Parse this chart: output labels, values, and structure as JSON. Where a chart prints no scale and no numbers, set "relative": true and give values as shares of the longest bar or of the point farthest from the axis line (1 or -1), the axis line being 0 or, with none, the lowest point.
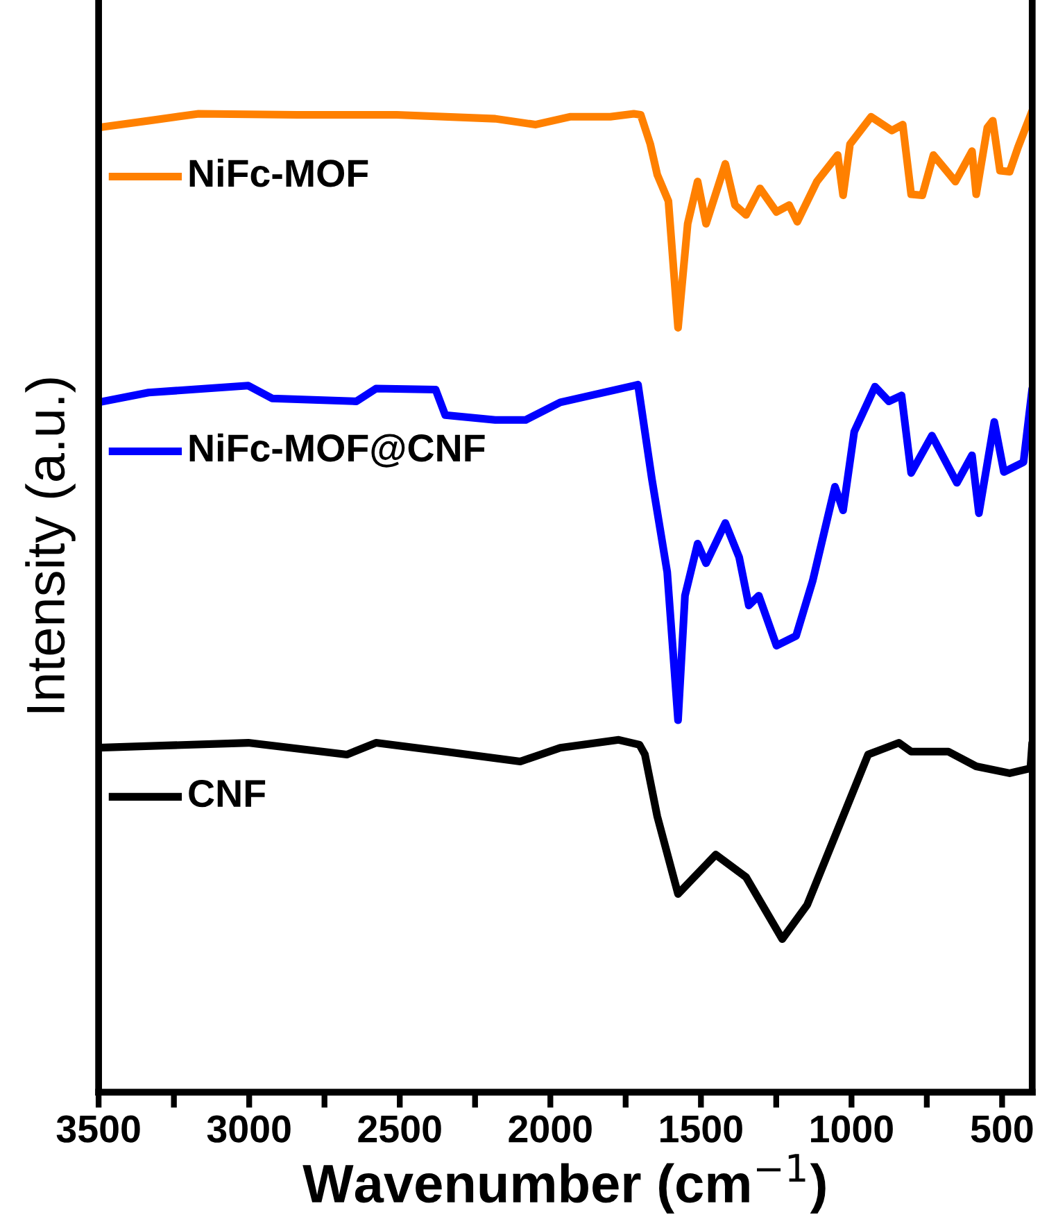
{
  "chart_data": {
    "type": "line",
    "relative": true,
    "xlabel": "Wavenumber (cm$^{−1}$)",
    "ylabel": "Intensity (a.u.)",
    "xlim": [
      3500,
      400
    ],
    "xticks": [
      3500,
      {
        "value": 3250,
        "label": null
      },
      3000,
      {
        "value": 2750,
        "label": null
      },
      2500,
      {
        "value": 2250,
        "label": null
      },
      2000,
      {
        "value": 1750,
        "label": null
      },
      1500,
      {
        "value": 1250,
        "label": null
      },
      1000,
      {
        "value": 750,
        "label": null
      },
      500
    ],
    "tick_labels": "x",
    "grid": false,
    "legend": "top left",
    "marker": "none",
    "line_style": "solid",
    "series": [
      {
        "name": "NiFc-MOF",
        "color": "#ff8000",
        "x": [
          3500,
          3334,
          3168,
          2842,
          2510,
          2183,
          2050,
          1935,
          1801,
          1723,
          1700,
          1668,
          1645,
          1608,
          1576,
          1544,
          1511,
          1483,
          1419,
          1387,
          1350,
          1304,
          1249,
          1207,
          1180,
          1115,
          1046,
          1028,
          1005,
          935,
          866,
          830,
          802,
          765,
          728,
          655,
          600,
          586,
          549,
          531,
          507,
          475,
          447,
          400
        ],
        "values": [
          0.983,
          0.99,
          0.997,
          0.996,
          0.996,
          0.992,
          0.986,
          0.994,
          0.994,
          0.997,
          0.996,
          0.966,
          0.935,
          0.908,
          0.779,
          0.885,
          0.928,
          0.885,
          0.946,
          0.904,
          0.894,
          0.921,
          0.897,
          0.904,
          0.887,
          0.928,
          0.955,
          0.914,
          0.966,
          0.994,
          0.98,
          0.986,
          0.915,
          0.914,
          0.955,
          0.928,
          0.959,
          0.915,
          0.983,
          0.99,
          0.939,
          0.938,
          0.963,
          1.0
        ]
      },
      {
        "name": "NiFc-MOF@CNF",
        "color": "#0000ff",
        "x": [
          3500,
          3334,
          3003,
          2924,
          2644,
          2579,
          2381,
          2349,
          2183,
          2082,
          1967,
          1723,
          1709,
          1663,
          1612,
          1576,
          1553,
          1511,
          1483,
          1419,
          1373,
          1341,
          1308,
          1249,
          1184,
          1129,
          1055,
          1028,
          991,
          922,
          876,
          834,
          802,
          733,
          650,
          600,
          577,
          526,
          494,
          429,
          400
        ],
        "values": [
          0.703,
          0.713,
          0.72,
          0.707,
          0.704,
          0.717,
          0.716,
          0.69,
          0.685,
          0.685,
          0.703,
          0.72,
          0.721,
          0.625,
          0.53,
          0.379,
          0.506,
          0.559,
          0.539,
          0.58,
          0.545,
          0.496,
          0.506,
          0.455,
          0.465,
          0.521,
          0.617,
          0.593,
          0.673,
          0.719,
          0.704,
          0.71,
          0.631,
          0.669,
          0.621,
          0.649,
          0.59,
          0.683,
          0.632,
          0.642,
          0.717
        ]
      },
      {
        "name": "CNF",
        "color": "#000000",
        "x": [
          3500,
          3003,
          2676,
          2579,
          2349,
          2100,
          1967,
          1773,
          1704,
          1686,
          1645,
          1576,
          1451,
          1350,
          1230,
          1147,
          945,
          843,
          802,
          678,
          586,
          475,
          406,
          400
        ],
        "values": [
          0.351,
          0.356,
          0.344,
          0.356,
          0.347,
          0.337,
          0.351,
          0.359,
          0.354,
          0.344,
          0.281,
          0.202,
          0.242,
          0.219,
          0.156,
          0.191,
          0.344,
          0.356,
          0.347,
          0.347,
          0.332,
          0.325,
          0.33,
          0.356
        ]
      }
    ]
  }
}
